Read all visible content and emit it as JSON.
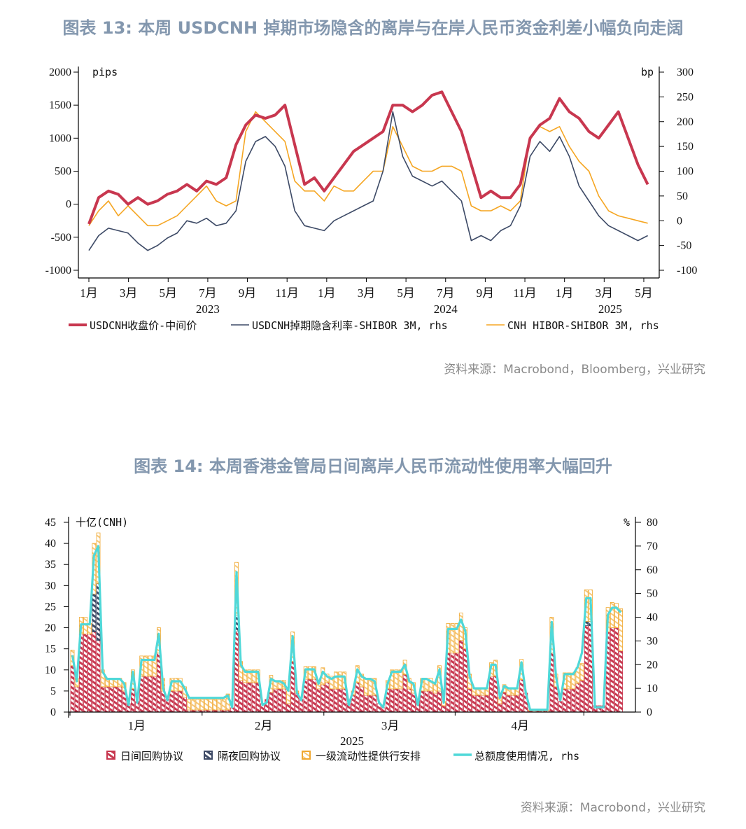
{
  "chart_data": [
    {
      "type": "line",
      "title": "图表 13: 本周 USDCNH 掉期市场隐含的离岸与在岸人民币资金利差小幅负向走阔",
      "left_unit": "pips",
      "right_unit": "bp",
      "left_ylim": [
        -1000,
        2000
      ],
      "left_ticks": [
        "2000",
        "1500",
        "1000",
        "500",
        "0",
        "-500",
        "-1000"
      ],
      "left_tick_values": [
        2000,
        1500,
        1000,
        500,
        0,
        -500,
        -1000
      ],
      "right_ylim": [
        -100,
        300
      ],
      "right_ticks": [
        "300",
        "250",
        "200",
        "150",
        "100",
        "50",
        "0",
        "-50",
        "-100"
      ],
      "right_tick_values": [
        300,
        250,
        200,
        150,
        100,
        50,
        0,
        -50,
        -100
      ],
      "x_start": "2023-01",
      "x_frequency": "semi-monthly",
      "x_ticks": [
        "1月",
        "3月",
        "5月",
        "7月",
        "9月",
        "11月",
        "1月",
        "3月",
        "5月",
        "7月",
        "9月",
        "11月",
        "1月",
        "3月",
        "5月"
      ],
      "x_tick_months": [
        0,
        2,
        4,
        6,
        8,
        10,
        12,
        14,
        16,
        18,
        20,
        22,
        24,
        26,
        28
      ],
      "years": [
        "2023",
        "2024",
        "2025"
      ],
      "year_label_months": [
        6,
        18,
        26.3
      ],
      "series": [
        {
          "name": "USDCNH收盘价-中间价",
          "axis": "left",
          "color": "#c8374f",
          "values": [
            -300,
            100,
            200,
            150,
            0,
            100,
            0,
            50,
            150,
            200,
            300,
            200,
            350,
            300,
            400,
            900,
            1200,
            1350,
            1300,
            1350,
            1500,
            900,
            300,
            400,
            200,
            400,
            600,
            800,
            900,
            1000,
            1100,
            1500,
            1500,
            1400,
            1500,
            1650,
            1700,
            1400,
            1100,
            600,
            100,
            200,
            100,
            100,
            300,
            1000,
            1200,
            1300,
            1600,
            1400,
            1300,
            1100,
            1000,
            1200,
            1400,
            1000,
            600,
            300
          ]
        },
        {
          "name": "USDCNH掉期隐含利率-SHIBOR 3M, rhs",
          "axis": "right",
          "color": "#3d4a66",
          "values": [
            -60,
            -30,
            -15,
            -20,
            -25,
            -45,
            -60,
            -50,
            -35,
            -25,
            0,
            -5,
            5,
            -10,
            -5,
            20,
            120,
            160,
            170,
            150,
            110,
            20,
            -10,
            -15,
            -20,
            0,
            10,
            20,
            30,
            40,
            100,
            220,
            130,
            90,
            80,
            70,
            80,
            60,
            40,
            -40,
            -30,
            -40,
            -20,
            -10,
            30,
            130,
            160,
            140,
            170,
            130,
            70,
            40,
            10,
            -10,
            -20,
            -30,
            -40,
            -30
          ]
        },
        {
          "name": "CNH HIBOR-SHIBOR 3M, rhs",
          "axis": "right",
          "color": "#f5a623",
          "values": [
            -10,
            20,
            40,
            10,
            30,
            10,
            -10,
            -10,
            0,
            10,
            30,
            50,
            70,
            40,
            30,
            40,
            180,
            220,
            200,
            180,
            160,
            80,
            60,
            60,
            40,
            70,
            60,
            60,
            80,
            100,
            100,
            190,
            150,
            110,
            100,
            100,
            110,
            110,
            100,
            30,
            20,
            20,
            30,
            20,
            40,
            170,
            190,
            180,
            190,
            150,
            120,
            100,
            50,
            20,
            10,
            5,
            0,
            -5
          ]
        }
      ],
      "source": "资料来源：Macrobond，Bloomberg，兴业研究"
    },
    {
      "type": "bar",
      "title": "图表 14: 本周香港金管局日间离岸人民币流动性使用率大幅回升",
      "left_unit": "十亿(CNH)",
      "right_unit": "%",
      "left_ylim": [
        0,
        45
      ],
      "left_ticks": [
        "45",
        "40",
        "35",
        "30",
        "25",
        "20",
        "15",
        "10",
        "5",
        "0"
      ],
      "left_tick_values": [
        45,
        40,
        35,
        30,
        25,
        20,
        15,
        10,
        5,
        0
      ],
      "right_ylim": [
        0,
        80
      ],
      "right_ticks": [
        "80",
        "70",
        "60",
        "50",
        "40",
        "30",
        "20",
        "10",
        "0"
      ],
      "right_tick_values": [
        80,
        70,
        60,
        50,
        40,
        30,
        20,
        10,
        0
      ],
      "x_ticks": [
        "1月",
        "2月",
        "3月",
        "4月"
      ],
      "x_tick_boundaries_day_index": [
        0,
        30.6,
        58.8,
        89.2,
        119
      ],
      "year": "2025",
      "series_names": [
        "日间回购协议",
        "隔夜回购协议",
        "一级流动性提供行安排",
        "总额度使用情况, rhs"
      ],
      "colors": {
        "intraday": "#c8374f",
        "overnight": "#3e4a66",
        "liquidity": "#f0a830",
        "usage": "#4fd8d8"
      },
      "fields": [
        "intraday_repo",
        "overnight_repo",
        "primary_liquidity",
        "usage_pct"
      ],
      "points": [
        [
          11,
          0,
          3.7,
          24
        ],
        [
          6,
          0,
          2,
          13
        ],
        [
          18.5,
          0,
          4,
          37
        ],
        [
          18.5,
          0,
          4,
          37
        ],
        [
          18.5,
          0,
          2.5,
          37
        ],
        [
          19,
          9,
          12,
          66
        ],
        [
          17,
          13.5,
          12,
          70
        ],
        [
          6,
          0,
          4,
          17
        ],
        [
          6,
          0,
          2,
          14
        ],
        [
          6,
          0,
          2,
          14
        ],
        [
          6,
          0,
          2,
          14
        ],
        [
          6,
          0,
          2,
          14
        ],
        [
          5,
          0,
          2,
          12
        ],
        [
          2,
          0,
          0,
          3
        ],
        [
          5.5,
          0,
          4.5,
          17
        ],
        [
          2.5,
          0,
          0,
          4
        ],
        [
          8.5,
          0,
          4.8,
          22
        ],
        [
          8.5,
          0,
          4.8,
          22
        ],
        [
          8.5,
          0,
          4.8,
          22
        ],
        [
          8.5,
          0,
          4.8,
          22
        ],
        [
          14,
          0,
          6,
          33
        ],
        [
          5,
          0,
          3,
          10
        ],
        [
          3,
          0,
          0,
          5
        ],
        [
          5,
          0,
          3,
          13
        ],
        [
          5,
          0,
          3,
          13
        ],
        [
          5,
          0,
          3,
          13
        ],
        [
          3.5,
          0,
          2.5,
          10
        ],
        [
          0.5,
          0,
          2.5,
          6
        ],
        [
          0.5,
          0,
          2.5,
          6
        ],
        [
          0.5,
          0,
          2.5,
          6
        ],
        [
          0.5,
          0,
          2.5,
          6
        ],
        [
          0.5,
          0,
          2.5,
          6
        ],
        [
          0.5,
          0,
          2.5,
          6
        ],
        [
          0.5,
          0,
          2.5,
          6
        ],
        [
          0.5,
          0,
          2.5,
          6
        ],
        [
          0.5,
          0,
          2.5,
          6
        ],
        [
          0.5,
          0,
          3.8,
          7
        ],
        [
          1,
          0,
          0,
          2
        ],
        [
          19,
          4,
          12.5,
          59
        ],
        [
          7.5,
          0,
          4.5,
          20
        ],
        [
          7,
          0,
          3,
          17
        ],
        [
          7,
          0,
          3,
          17
        ],
        [
          7,
          0,
          3,
          17
        ],
        [
          7,
          0,
          3,
          17
        ],
        [
          2,
          0,
          0,
          3
        ],
        [
          3,
          0,
          0,
          4
        ],
        [
          4.7,
          0,
          4,
          14
        ],
        [
          5.5,
          0,
          2,
          13
        ],
        [
          5.5,
          0,
          2,
          13
        ],
        [
          5.5,
          0,
          2,
          12
        ],
        [
          2,
          0,
          3,
          9
        ],
        [
          12,
          0,
          7,
          32
        ],
        [
          4.5,
          0,
          0.5,
          8
        ],
        [
          3,
          0,
          0,
          5
        ],
        [
          7.8,
          0,
          3,
          18
        ],
        [
          7.8,
          0,
          3,
          18
        ],
        [
          7.8,
          0,
          3,
          18
        ],
        [
          5.5,
          0,
          1.5,
          12
        ],
        [
          6.5,
          0,
          4,
          17
        ],
        [
          7,
          0,
          2,
          15
        ],
        [
          5.5,
          0,
          3,
          14
        ],
        [
          5.5,
          0,
          4,
          15
        ],
        [
          5.5,
          0,
          4,
          15
        ],
        [
          5.5,
          0,
          4,
          15
        ],
        [
          2,
          0,
          0,
          3
        ],
        [
          4,
          0,
          1,
          9
        ],
        [
          7,
          0,
          4,
          18
        ],
        [
          6,
          0,
          3,
          15
        ],
        [
          4,
          0,
          4,
          14
        ],
        [
          4,
          0,
          4,
          14
        ],
        [
          4,
          0,
          4,
          13
        ],
        [
          2,
          0,
          0,
          4
        ],
        [
          1,
          0,
          0,
          2
        ],
        [
          5.5,
          0,
          2,
          12
        ],
        [
          5.5,
          0,
          4.5,
          17
        ],
        [
          5.5,
          0,
          4.5,
          17
        ],
        [
          5.5,
          0,
          4.5,
          17
        ],
        [
          8.9,
          0,
          3.4,
          20
        ],
        [
          5.5,
          0,
          2.5,
          13
        ],
        [
          4.5,
          0,
          2.5,
          12
        ],
        [
          3,
          0,
          0,
          3
        ],
        [
          5,
          0,
          3,
          14
        ],
        [
          5,
          0,
          3,
          14
        ],
        [
          5,
          0,
          3,
          13
        ],
        [
          4.5,
          0,
          2,
          12
        ],
        [
          5,
          0,
          6,
          18
        ],
        [
          1.5,
          0,
          1,
          4
        ],
        [
          14,
          0,
          7,
          35
        ],
        [
          14,
          0,
          7,
          35
        ],
        [
          14,
          0,
          7,
          35
        ],
        [
          17,
          0,
          6.5,
          39
        ],
        [
          15,
          0,
          5,
          34
        ],
        [
          5.5,
          0,
          3.5,
          15
        ],
        [
          4,
          0,
          1.7,
          10
        ],
        [
          4,
          0,
          1.7,
          10
        ],
        [
          4,
          0,
          1.7,
          10
        ],
        [
          4,
          0,
          1.7,
          10
        ],
        [
          8.5,
          0,
          3.2,
          20
        ],
        [
          8.5,
          0,
          3.8,
          20
        ],
        [
          2,
          0,
          1.5,
          6
        ],
        [
          4.7,
          0,
          1.8,
          11
        ],
        [
          4,
          0,
          1.7,
          10
        ],
        [
          4,
          0,
          1.7,
          10
        ],
        [
          4,
          0,
          1.7,
          10
        ],
        [
          7.7,
          0,
          4.8,
          21
        ],
        [
          4.5,
          0,
          0,
          8
        ],
        [
          0.3,
          0,
          0.2,
          1
        ],
        [
          0.3,
          0,
          0.2,
          1
        ],
        [
          0.3,
          0,
          0.2,
          1
        ],
        [
          0.3,
          0,
          0.2,
          1
        ],
        [
          0.3,
          0,
          0.2,
          1
        ],
        [
          14,
          0,
          8.5,
          38
        ],
        [
          6,
          0,
          3,
          15
        ],
        [
          2.5,
          0,
          0,
          5
        ],
        [
          5.5,
          0,
          3.8,
          16
        ],
        [
          5.5,
          0,
          3.8,
          16
        ],
        [
          5.5,
          0,
          3.8,
          16
        ],
        [
          6.8,
          0,
          3.7,
          19
        ],
        [
          7.5,
          0,
          4,
          25
        ],
        [
          20.5,
          1,
          7.5,
          48
        ],
        [
          20.5,
          1,
          7.5,
          48
        ],
        [
          1.5,
          0,
          0,
          2
        ],
        [
          1.5,
          0,
          0,
          2
        ],
        [
          1.5,
          0,
          0,
          2
        ],
        [
          19,
          0,
          5.8,
          41
        ],
        [
          20,
          0,
          6,
          44
        ],
        [
          20,
          0,
          5.8,
          44
        ],
        [
          14.5,
          0,
          10,
          42
        ]
      ],
      "source": "资料来源：Macrobond，兴业研究"
    }
  ]
}
